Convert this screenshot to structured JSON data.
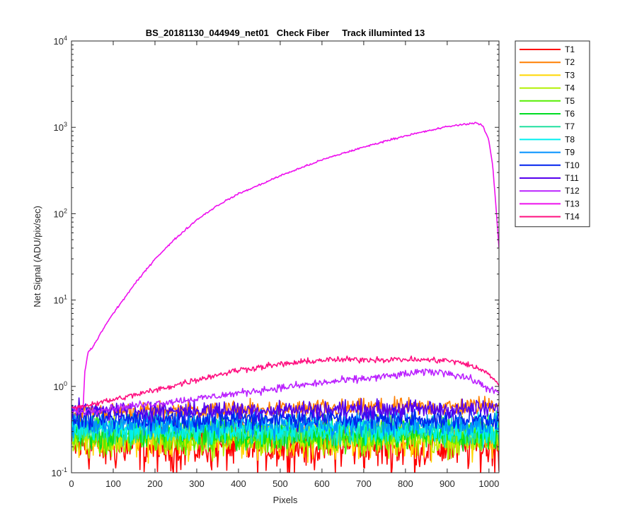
{
  "chart_data": {
    "type": "line",
    "title": "BS_20181130_044949_net01   Check Fiber     Track illuminted 13",
    "xlabel": "Pixels",
    "ylabel": "Net Signal (ADU/pix/sec)",
    "xlim": [
      0,
      1024
    ],
    "ylim": [
      0.1,
      10000
    ],
    "yscale": "log",
    "grid": false,
    "legend_position": "outside-top-right",
    "x_ticks": [
      0,
      100,
      200,
      300,
      400,
      500,
      600,
      700,
      800,
      900,
      1000
    ],
    "x_tick_labels": [
      "0",
      "100",
      "200",
      "300",
      "400",
      "500",
      "600",
      "700",
      "800",
      "900",
      "1000"
    ],
    "y_ticks": [
      0.1,
      1,
      10,
      100,
      1000,
      10000
    ],
    "y_tick_labels": [
      {
        "base": "10",
        "exp": "-1"
      },
      {
        "base": "10",
        "exp": "0"
      },
      {
        "base": "10",
        "exp": "1"
      },
      {
        "base": "10",
        "exp": "2"
      },
      {
        "base": "10",
        "exp": "3"
      },
      {
        "base": "10",
        "exp": "4"
      }
    ],
    "series": [
      {
        "name": "T1",
        "color": "#ff0000",
        "noise": 0.32,
        "points": [
          [
            0,
            0.2
          ],
          [
            200,
            0.2
          ],
          [
            400,
            0.2
          ],
          [
            600,
            0.21
          ],
          [
            800,
            0.2
          ],
          [
            1024,
            0.2
          ]
        ]
      },
      {
        "name": "T2",
        "color": "#ff7f00",
        "noise": 0.12,
        "points": [
          [
            0,
            0.5
          ],
          [
            200,
            0.52
          ],
          [
            400,
            0.53
          ],
          [
            600,
            0.55
          ],
          [
            800,
            0.57
          ],
          [
            950,
            0.58
          ],
          [
            1000,
            0.62
          ],
          [
            1024,
            0.66
          ]
        ]
      },
      {
        "name": "T3",
        "color": "#ffd700",
        "noise": 0.25,
        "points": [
          [
            0,
            0.24
          ],
          [
            500,
            0.25
          ],
          [
            1024,
            0.25
          ]
        ]
      },
      {
        "name": "T4",
        "color": "#b0f000",
        "noise": 0.25,
        "points": [
          [
            0,
            0.25
          ],
          [
            500,
            0.26
          ],
          [
            1024,
            0.25
          ]
        ]
      },
      {
        "name": "T5",
        "color": "#55ee00",
        "noise": 0.22,
        "points": [
          [
            0,
            0.27
          ],
          [
            500,
            0.27
          ],
          [
            1024,
            0.27
          ]
        ]
      },
      {
        "name": "T6",
        "color": "#00dd22",
        "noise": 0.2,
        "points": [
          [
            0,
            0.29
          ],
          [
            500,
            0.29
          ],
          [
            1024,
            0.29
          ]
        ]
      },
      {
        "name": "T7",
        "color": "#22e0a0",
        "noise": 0.2,
        "points": [
          [
            0,
            0.31
          ],
          [
            500,
            0.31
          ],
          [
            1024,
            0.31
          ]
        ]
      },
      {
        "name": "T8",
        "color": "#00f0f0",
        "noise": 0.18,
        "points": [
          [
            0,
            0.32
          ],
          [
            500,
            0.32
          ],
          [
            1024,
            0.31
          ]
        ]
      },
      {
        "name": "T9",
        "color": "#0090ff",
        "noise": 0.16,
        "points": [
          [
            0,
            0.36
          ],
          [
            500,
            0.37
          ],
          [
            1024,
            0.36
          ]
        ]
      },
      {
        "name": "T10",
        "color": "#0022ee",
        "noise": 0.14,
        "points": [
          [
            0,
            0.42
          ],
          [
            500,
            0.43
          ],
          [
            1024,
            0.42
          ]
        ]
      },
      {
        "name": "T11",
        "color": "#5500ee",
        "noise": 0.12,
        "points": [
          [
            0,
            0.52
          ],
          [
            500,
            0.54
          ],
          [
            1024,
            0.55
          ]
        ]
      },
      {
        "name": "T12",
        "color": "#bb22ff",
        "noise": 0.05,
        "points": [
          [
            0,
            0.5
          ],
          [
            50,
            0.53
          ],
          [
            150,
            0.6
          ],
          [
            300,
            0.72
          ],
          [
            450,
            0.9
          ],
          [
            600,
            1.1
          ],
          [
            750,
            1.3
          ],
          [
            850,
            1.48
          ],
          [
            900,
            1.45
          ],
          [
            950,
            1.25
          ],
          [
            1000,
            0.95
          ],
          [
            1024,
            0.82
          ]
        ]
      },
      {
        "name": "T13",
        "color": "#ee11ee",
        "noise": 0.012,
        "points": [
          [
            0,
            0.56
          ],
          [
            28,
            0.58
          ],
          [
            32,
            1.5
          ],
          [
            40,
            2.5
          ],
          [
            50,
            2.8
          ],
          [
            80,
            5
          ],
          [
            100,
            7
          ],
          [
            150,
            15
          ],
          [
            200,
            30
          ],
          [
            250,
            52
          ],
          [
            300,
            85
          ],
          [
            350,
            125
          ],
          [
            400,
            170
          ],
          [
            450,
            215
          ],
          [
            500,
            275
          ],
          [
            550,
            340
          ],
          [
            600,
            420
          ],
          [
            650,
            500
          ],
          [
            700,
            590
          ],
          [
            750,
            690
          ],
          [
            800,
            800
          ],
          [
            850,
            900
          ],
          [
            900,
            1020
          ],
          [
            950,
            1100
          ],
          [
            970,
            1130
          ],
          [
            985,
            1050
          ],
          [
            1000,
            700
          ],
          [
            1010,
            320
          ],
          [
            1018,
            100
          ],
          [
            1024,
            40
          ]
        ]
      },
      {
        "name": "T14",
        "color": "#ff1080",
        "noise": 0.04,
        "points": [
          [
            0,
            0.56
          ],
          [
            100,
            0.7
          ],
          [
            200,
            0.9
          ],
          [
            300,
            1.2
          ],
          [
            400,
            1.55
          ],
          [
            500,
            1.8
          ],
          [
            600,
            2.02
          ],
          [
            700,
            2.05
          ],
          [
            800,
            2.05
          ],
          [
            900,
            2.0
          ],
          [
            950,
            1.8
          ],
          [
            1000,
            1.4
          ],
          [
            1024,
            1.05
          ]
        ]
      }
    ]
  }
}
